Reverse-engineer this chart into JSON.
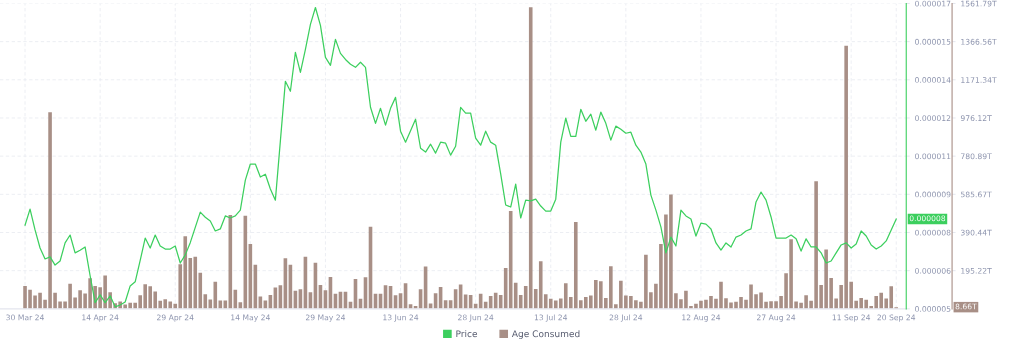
{
  "chart_data": {
    "type": "bar",
    "x": [
      "2024-03-30",
      "2024-03-31",
      "2024-04-01",
      "2024-04-02",
      "2024-04-03",
      "2024-04-04",
      "2024-04-05",
      "2024-04-06",
      "2024-04-07",
      "2024-04-08",
      "2024-04-09",
      "2024-04-10",
      "2024-04-11",
      "2024-04-12",
      "2024-04-13",
      "2024-04-14",
      "2024-04-15",
      "2024-04-16",
      "2024-04-17",
      "2024-04-18",
      "2024-04-19",
      "2024-04-20",
      "2024-04-21",
      "2024-04-22",
      "2024-04-23",
      "2024-04-24",
      "2024-04-25",
      "2024-04-26",
      "2024-04-27",
      "2024-04-28",
      "2024-04-29",
      "2024-04-30",
      "2024-05-01",
      "2024-05-02",
      "2024-05-03",
      "2024-05-04",
      "2024-05-05",
      "2024-05-06",
      "2024-05-07",
      "2024-05-08",
      "2024-05-09",
      "2024-05-10",
      "2024-05-11",
      "2024-05-12",
      "2024-05-13",
      "2024-05-14",
      "2024-05-15",
      "2024-05-16",
      "2024-05-17",
      "2024-05-18",
      "2024-05-19",
      "2024-05-20",
      "2024-05-21",
      "2024-05-22",
      "2024-05-23",
      "2024-05-24",
      "2024-05-25",
      "2024-05-26",
      "2024-05-27",
      "2024-05-28",
      "2024-05-29",
      "2024-05-30",
      "2024-05-31",
      "2024-06-01",
      "2024-06-02",
      "2024-06-03",
      "2024-06-04",
      "2024-06-05",
      "2024-06-06",
      "2024-06-07",
      "2024-06-08",
      "2024-06-09",
      "2024-06-10",
      "2024-06-11",
      "2024-06-12",
      "2024-06-13",
      "2024-06-14",
      "2024-06-15",
      "2024-06-16",
      "2024-06-17",
      "2024-06-18",
      "2024-06-19",
      "2024-06-20",
      "2024-06-21",
      "2024-06-22",
      "2024-06-23",
      "2024-06-24",
      "2024-06-25",
      "2024-06-26",
      "2024-06-27",
      "2024-06-28",
      "2024-06-29",
      "2024-06-30",
      "2024-07-01",
      "2024-07-02",
      "2024-07-03",
      "2024-07-04",
      "2024-07-05",
      "2024-07-06",
      "2024-07-07",
      "2024-07-08",
      "2024-07-09",
      "2024-07-10",
      "2024-07-11",
      "2024-07-12",
      "2024-07-13",
      "2024-07-14",
      "2024-07-15",
      "2024-07-16",
      "2024-07-17",
      "2024-07-18",
      "2024-07-19",
      "2024-07-20",
      "2024-07-21",
      "2024-07-22",
      "2024-07-23",
      "2024-07-24",
      "2024-07-25",
      "2024-07-26",
      "2024-07-27",
      "2024-07-28",
      "2024-07-29",
      "2024-07-30",
      "2024-07-31",
      "2024-08-01",
      "2024-08-02",
      "2024-08-03",
      "2024-08-04",
      "2024-08-05",
      "2024-08-06",
      "2024-08-07",
      "2024-08-08",
      "2024-08-09",
      "2024-08-10",
      "2024-08-11",
      "2024-08-12",
      "2024-08-13",
      "2024-08-14",
      "2024-08-15",
      "2024-08-16",
      "2024-08-17",
      "2024-08-18",
      "2024-08-19",
      "2024-08-20",
      "2024-08-21",
      "2024-08-22",
      "2024-08-23",
      "2024-08-24",
      "2024-08-25",
      "2024-08-26",
      "2024-08-27",
      "2024-08-28",
      "2024-08-29",
      "2024-08-30",
      "2024-08-31",
      "2024-09-01",
      "2024-09-02",
      "2024-09-03",
      "2024-09-04",
      "2024-09-05",
      "2024-09-06",
      "2024-09-07",
      "2024-09-08",
      "2024-09-09",
      "2024-09-10",
      "2024-09-11",
      "2024-09-12",
      "2024-09-13",
      "2024-09-14",
      "2024-09-15",
      "2024-09-16",
      "2024-09-17",
      "2024-09-18",
      "2024-09-19",
      "2024-09-20"
    ],
    "series": [
      {
        "name": "Age Consumed",
        "axis": "y",
        "color": "#a88f86",
        "values": [
          117,
          97,
          68,
          82,
          46,
          1005,
          82,
          37,
          37,
          128,
          58,
          95,
          78,
          156,
          117,
          111,
          170,
          85,
          29,
          37,
          22,
          31,
          31,
          70,
          126,
          116,
          88,
          41,
          49,
          37,
          26,
          228,
          371,
          260,
          267,
          185,
          75,
          48,
          139,
          43,
          43,
          480,
          97,
          34,
          476,
          332,
          226,
          63,
          43,
          71,
          109,
          121,
          259,
          225,
          92,
          100,
          267,
          85,
          236,
          122,
          95,
          163,
          77,
          87,
          87,
          36,
          153,
          51,
          162,
          420,
          77,
          77,
          121,
          117,
          70,
          80,
          131,
          24,
          15,
          100,
          216,
          27,
          80,
          112,
          44,
          44,
          100,
          124,
          73,
          71,
          26,
          77,
          36,
          65,
          82,
          71,
          209,
          500,
          133,
          71,
          117,
          1543,
          102,
          243,
          75,
          51,
          43,
          53,
          131,
          61,
          444,
          44,
          61,
          68,
          148,
          141,
          56,
          218,
          24,
          143,
          68,
          65,
          44,
          36,
          277,
          85,
          128,
          332,
          483,
          585,
          80,
          49,
          92,
          15,
          26,
          41,
          46,
          66,
          51,
          139,
          54,
          32,
          36,
          60,
          46,
          124,
          75,
          83,
          36,
          39,
          39,
          66,
          182,
          356,
          37,
          31,
          70,
          41,
          653,
          122,
          304,
          158,
          53,
          122,
          1345,
          139,
          41,
          56,
          46,
          15,
          66,
          82,
          53,
          116,
          8.66
        ]
      },
      {
        "name": "Price",
        "type": "line",
        "axis": "y2",
        "color": "#3ccf5e",
        "values": [
          8.29e-06,
          8.92e-06,
          8.1e-06,
          7.39e-06,
          6.96e-06,
          7.04e-06,
          6.72e-06,
          6.88e-06,
          7.59e-06,
          7.9e-06,
          7.2e-06,
          7.3e-06,
          7.43e-06,
          6.3e-06,
          5.24e-06,
          5.55e-06,
          5.24e-06,
          5.51e-06,
          5.08e-06,
          5.15e-06,
          5.27e-06,
          5.9e-06,
          6.06e-06,
          6.9e-06,
          7.78e-06,
          7.39e-06,
          7.9e-06,
          7.47e-06,
          7.35e-06,
          7.35e-06,
          7.47e-06,
          6.8e-06,
          7.12e-06,
          7.6e-06,
          8.2e-06,
          8.8e-06,
          8.6e-06,
          8.45e-06,
          8.06e-06,
          8.14e-06,
          8.65e-06,
          8.57e-06,
          8.65e-06,
          8.88e-06,
          1.006e-05,
          1.069e-05,
          1.069e-05,
          1.018e-05,
          1.029e-05,
          9.71e-06,
          9.27e-06,
          1.16e-05,
          1.394e-05,
          1.355e-05,
          1.508e-05,
          1.429e-05,
          1.52e-05,
          1.618e-05,
          1.684e-05,
          1.614e-05,
          1.488e-05,
          1.457e-05,
          1.559e-05,
          1.504e-05,
          1.48e-05,
          1.461e-05,
          1.449e-05,
          1.469e-05,
          1.449e-05,
          1.292e-05,
          1.229e-05,
          1.288e-05,
          1.222e-05,
          1.288e-05,
          1.331e-05,
          1.198e-05,
          1.155e-05,
          1.2e-05,
          1.245e-05,
          1.131e-05,
          1.116e-05,
          1.147e-05,
          1.112e-05,
          1.155e-05,
          1.151e-05,
          1.104e-05,
          1.139e-05,
          1.292e-05,
          1.269e-05,
          1.269e-05,
          1.171e-05,
          1.143e-05,
          1.198e-05,
          1.155e-05,
          1.143e-05,
          1.03e-05,
          9.08e-06,
          9e-06,
          9.9e-06,
          8.57e-06,
          9.27e-06,
          9.24e-06,
          9.31e-06,
          9.04e-06,
          8.84e-06,
          8.84e-06,
          9.31e-06,
          1.155e-05,
          1.249e-05,
          1.178e-05,
          1.178e-05,
          1.284e-05,
          1.237e-05,
          1.265e-05,
          1.202e-05,
          1.273e-05,
          1.229e-05,
          1.163e-05,
          1.218e-05,
          1.206e-05,
          1.19e-05,
          1.194e-05,
          1.143e-05,
          1.116e-05,
          1.069e-05,
          9.47e-06,
          8.88e-06,
          8.22e-06,
          7.2e-06,
          7.82e-06,
          7.47e-06,
          8.88e-06,
          8.65e-06,
          8.53e-06,
          7.86e-06,
          8.37e-06,
          8.33e-06,
          8.14e-06,
          7.59e-06,
          7.31e-06,
          7.59e-06,
          7.43e-06,
          7.82e-06,
          7.9e-06,
          8.06e-06,
          8.14e-06,
          9.2e-06,
          9.59e-06,
          9.27e-06,
          8.61e-06,
          7.78e-06,
          7.78e-06,
          7.78e-06,
          7.9e-06,
          7.75e-06,
          7.27e-06,
          7.75e-06,
          7.43e-06,
          7.43e-06,
          7.2e-06,
          6.8e-06,
          6.88e-06,
          7.2e-06,
          7.51e-06,
          7.59e-06,
          7.39e-06,
          7.55e-06,
          8.06e-06,
          7.86e-06,
          7.51e-06,
          7.35e-06,
          7.47e-06,
          7.67e-06,
          8.1e-06,
          8.53e-06
        ]
      }
    ],
    "xlim": [
      "2024-03-25",
      "2024-09-22"
    ],
    "xticks": [
      {
        "value": "2024-03-30",
        "label": "30 Mar 24"
      },
      {
        "value": "2024-04-14",
        "label": "14 Apr 24"
      },
      {
        "value": "2024-04-29",
        "label": "29 Apr 24"
      },
      {
        "value": "2024-05-14",
        "label": "14 May 24"
      },
      {
        "value": "2024-05-29",
        "label": "29 May 24"
      },
      {
        "value": "2024-06-13",
        "label": "13 Jun 24"
      },
      {
        "value": "2024-06-28",
        "label": "28 Jun 24"
      },
      {
        "value": "2024-07-13",
        "label": "13 Jul 24"
      },
      {
        "value": "2024-07-28",
        "label": "28 Jul 24"
      },
      {
        "value": "2024-08-12",
        "label": "12 Aug 24"
      },
      {
        "value": "2024-08-27",
        "label": "27 Aug 24"
      },
      {
        "value": "2024-09-11",
        "label": "11 Sep 24"
      },
      {
        "value": "2024-09-20",
        "label": "20 Sep 24"
      }
    ],
    "ylim": [
      0,
      1561.79
    ],
    "yticks": [
      {
        "value": 195.22,
        "label": "195.22T"
      },
      {
        "value": 390.44,
        "label": "390.44T"
      },
      {
        "value": 585.67,
        "label": "585.67T"
      },
      {
        "value": 780.89,
        "label": "780.89T"
      },
      {
        "value": 976.12,
        "label": "976.12T"
      },
      {
        "value": 1171.34,
        "label": "1171.34T"
      },
      {
        "value": 1366.56,
        "label": "1366.56T"
      },
      {
        "value": 1561.79,
        "label": "1561.79T"
      }
    ],
    "y2lim": [
      5e-06,
      1.7e-05
    ],
    "y2ticks": [
      {
        "value": 5e-06,
        "label": "0.000005"
      },
      {
        "value": 6.5e-06,
        "label": "0.000006"
      },
      {
        "value": 8e-06,
        "label": "0.000008"
      },
      {
        "value": 9.5e-06,
        "label": "0.000009"
      },
      {
        "value": 1.1e-05,
        "label": "0.000011"
      },
      {
        "value": 1.25e-05,
        "label": "0.000012"
      },
      {
        "value": 1.4e-05,
        "label": "0.000014"
      },
      {
        "value": 1.55e-05,
        "label": "0.000015"
      },
      {
        "value": 1.7e-05,
        "label": "0.000017"
      }
    ],
    "annotations": [
      "8.66T",
      "0.000008"
    ],
    "grid": true,
    "legend": "bottom"
  }
}
